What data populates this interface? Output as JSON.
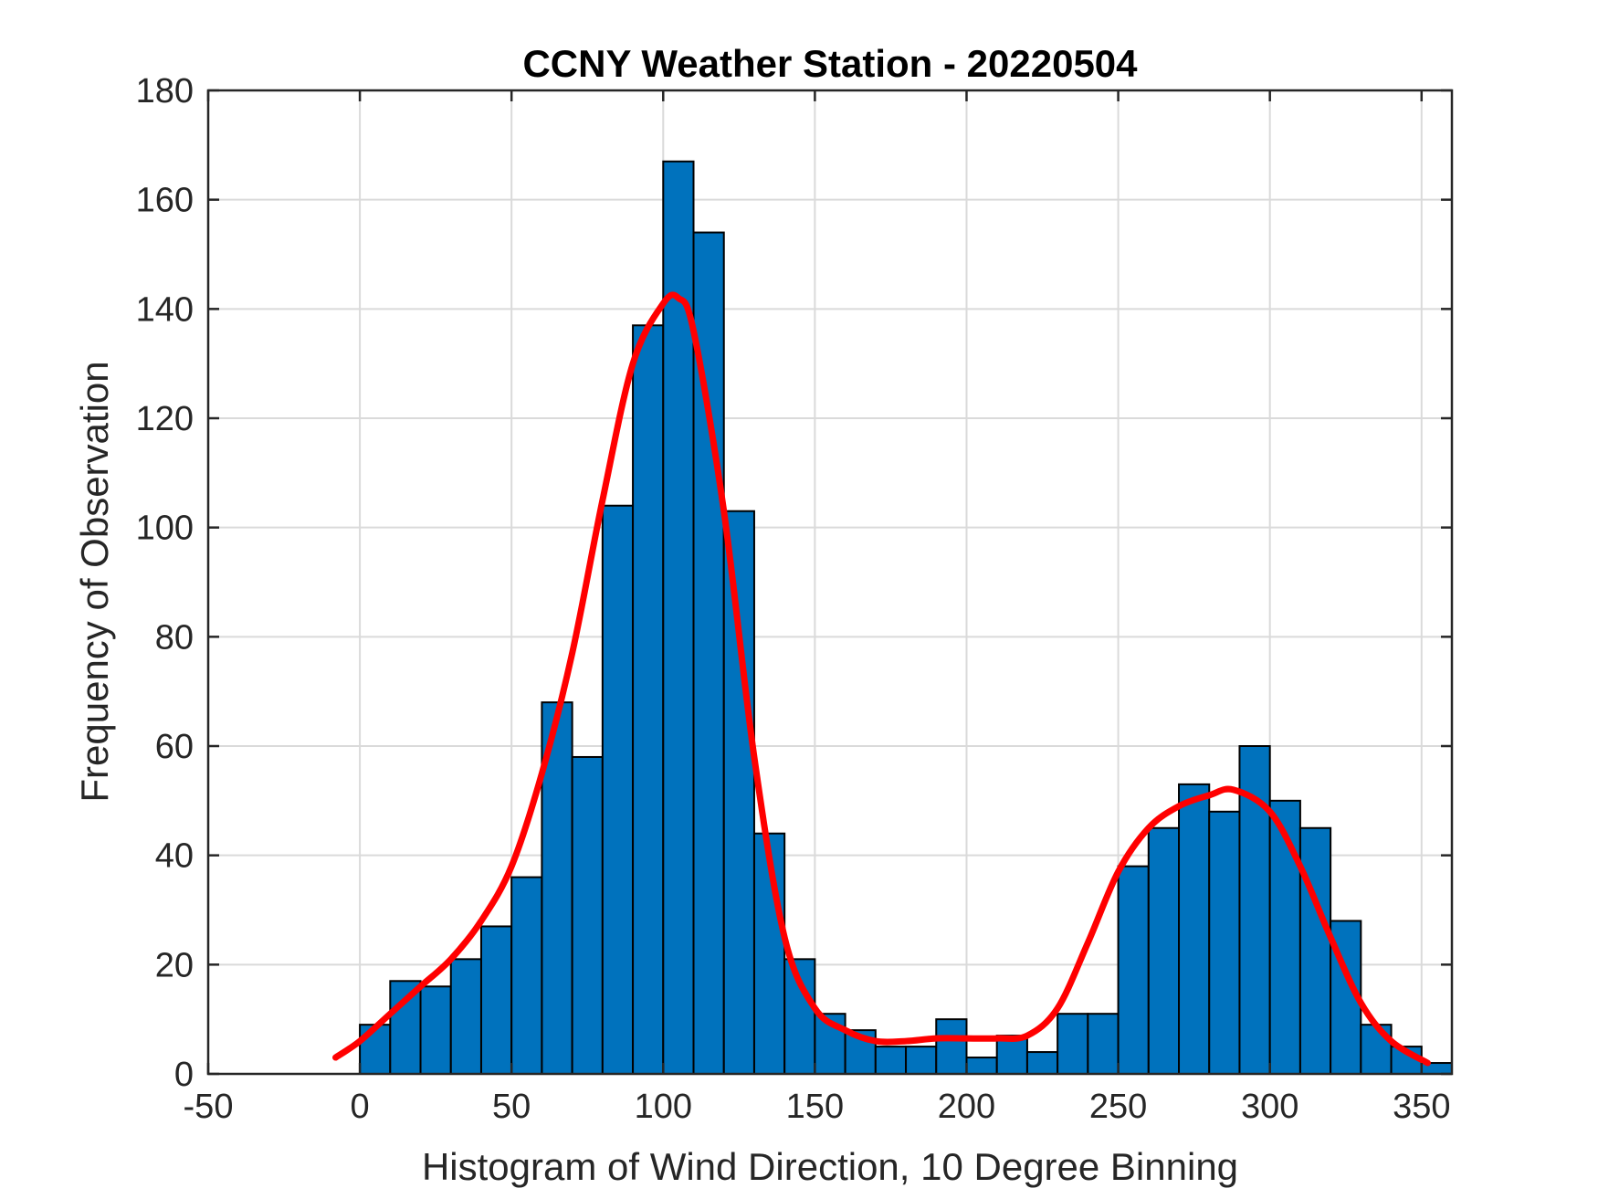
{
  "chart_data": {
    "type": "bar",
    "title": "CCNY Weather Station - 20220504",
    "xlabel": "Histogram of Wind Direction, 10 Degree Binning",
    "ylabel": "Frequency of Observation",
    "xlim": [
      -50,
      360
    ],
    "ylim": [
      0,
      180
    ],
    "xticks": [
      -50,
      0,
      50,
      100,
      150,
      200,
      250,
      300,
      350
    ],
    "yticks": [
      0,
      20,
      40,
      60,
      80,
      100,
      120,
      140,
      160,
      180
    ],
    "grid": true,
    "bin_width": 10,
    "bin_edges_start": [
      0,
      10,
      20,
      30,
      40,
      50,
      60,
      70,
      80,
      90,
      100,
      110,
      120,
      130,
      140,
      150,
      160,
      170,
      180,
      190,
      200,
      210,
      220,
      230,
      240,
      250,
      260,
      270,
      280,
      290,
      300,
      310,
      320,
      330,
      340,
      350
    ],
    "values": [
      9,
      17,
      16,
      21,
      27,
      36,
      68,
      58,
      104,
      137,
      167,
      154,
      103,
      44,
      21,
      11,
      8,
      5,
      5,
      10,
      3,
      7,
      4,
      11,
      11,
      38,
      45,
      53,
      48,
      60,
      50,
      45,
      28,
      9,
      5,
      2
    ],
    "bar_color": "#0072BD",
    "fit_line": {
      "color": "#FF0000",
      "x": [
        -8,
        0,
        10,
        20,
        30,
        40,
        50,
        60,
        70,
        80,
        90,
        100,
        105,
        110,
        120,
        130,
        140,
        150,
        160,
        170,
        180,
        190,
        200,
        210,
        220,
        230,
        240,
        250,
        260,
        270,
        280,
        288,
        300,
        310,
        320,
        330,
        340,
        352
      ],
      "y": [
        3,
        6,
        11,
        16,
        21,
        28,
        38,
        55,
        77,
        105,
        130,
        141,
        142,
        136,
        103,
        58,
        25,
        12,
        8,
        6,
        6,
        6.5,
        6.5,
        6.5,
        7,
        12,
        24,
        37,
        45,
        49,
        51,
        52,
        48,
        38,
        25,
        13,
        6,
        2
      ]
    }
  }
}
